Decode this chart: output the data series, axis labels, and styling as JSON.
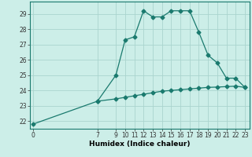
{
  "title": "",
  "xlabel": "Humidex (Indice chaleur)",
  "bg_color": "#cceee8",
  "grid_color": "#aad4ce",
  "line_color": "#1a7a6e",
  "ylim": [
    21.5,
    29.8
  ],
  "yticks": [
    22,
    23,
    24,
    25,
    26,
    27,
    28,
    29
  ],
  "xlim": [
    -0.3,
    23.5
  ],
  "xticks": [
    0,
    7,
    9,
    10,
    11,
    12,
    13,
    14,
    15,
    16,
    17,
    18,
    19,
    20,
    21,
    22,
    23
  ],
  "main_x": [
    0,
    7,
    9,
    10,
    11,
    12,
    13,
    14,
    15,
    16,
    17,
    18,
    19,
    20,
    21,
    22,
    23
  ],
  "main_y": [
    21.8,
    23.3,
    25.0,
    27.3,
    27.5,
    29.2,
    28.8,
    28.8,
    29.2,
    29.2,
    29.2,
    27.8,
    26.3,
    25.8,
    24.8,
    24.8,
    24.2
  ],
  "flat_x": [
    7,
    9,
    10,
    11,
    12,
    13,
    14,
    15,
    16,
    17,
    18,
    19,
    20,
    21,
    22,
    23
  ],
  "flat_y": [
    23.3,
    23.45,
    23.55,
    23.65,
    23.75,
    23.85,
    23.95,
    24.0,
    24.05,
    24.1,
    24.15,
    24.2,
    24.22,
    24.25,
    24.28,
    24.2
  ],
  "marker": "D",
  "marker_size": 2.5,
  "line_width": 0.9,
  "axis_fontsize": 6.5,
  "tick_fontsize": 5.5
}
